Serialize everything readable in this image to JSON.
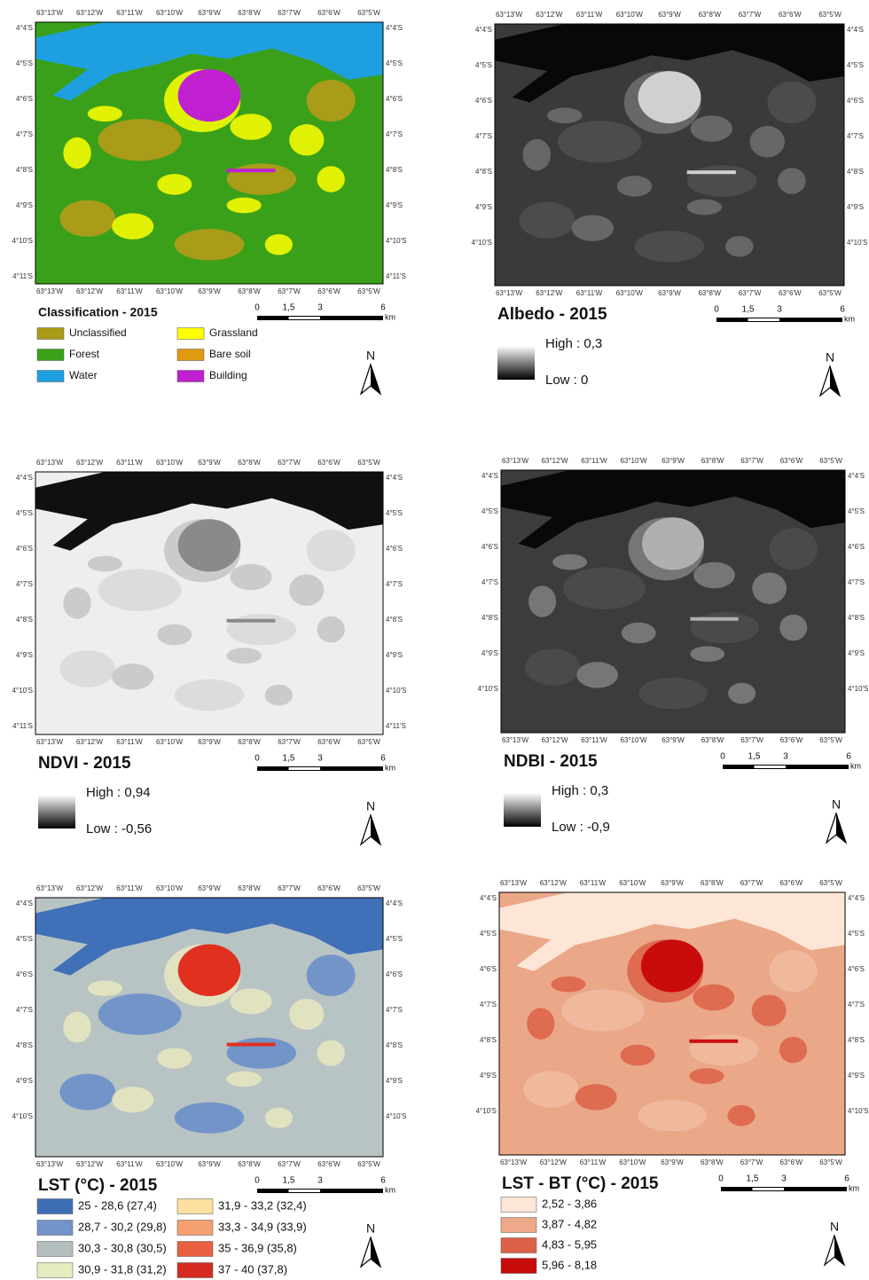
{
  "x_labels": [
    "63°13'W",
    "63°12'W",
    "63°11'W",
    "63°10'W",
    "63°9'W",
    "63°8'W",
    "63°7'W",
    "63°6'W",
    "63°5'W"
  ],
  "scale_bar": {
    "labels": [
      "0",
      "1,5",
      "3",
      "6"
    ],
    "unit": "km"
  },
  "north": "N",
  "panels": [
    {
      "title": "Classification - 2015",
      "y_labels": [
        "4°4'S",
        "4°5'S",
        "4°6'S",
        "4°7'S",
        "4°8'S",
        "4°9'S",
        "4°10'S",
        "4°11'S"
      ],
      "legend": {
        "items": [
          {
            "label": "Unclassified",
            "color": "#a89c18"
          },
          {
            "label": "Forest",
            "color": "#3aa01a"
          },
          {
            "label": "Water",
            "color": "#1ea0e0"
          },
          {
            "label": "Grassland",
            "color": "#ffff00"
          },
          {
            "label": "Bare soil",
            "color": "#e09a10"
          },
          {
            "label": "Building",
            "color": "#c020d0"
          }
        ]
      }
    },
    {
      "title": "Albedo - 2015",
      "y_labels": [
        "4°4'S",
        "4°5'S",
        "4°6'S",
        "4°7'S",
        "4°8'S",
        "4°9'S",
        "4°10'S"
      ],
      "legend": {
        "high": "High : 0,3",
        "low": "Low : 0"
      }
    },
    {
      "title": "NDVI - 2015",
      "y_labels": [
        "4°4'S",
        "4°5'S",
        "4°6'S",
        "4°7'S",
        "4°8'S",
        "4°9'S",
        "4°10'S",
        "4°11'S"
      ],
      "legend": {
        "high": "High : 0,94",
        "low": "Low : -0,56"
      }
    },
    {
      "title": "NDBI - 2015",
      "y_labels": [
        "4°4'S",
        "4°5'S",
        "4°6'S",
        "4°7'S",
        "4°8'S",
        "4°9'S",
        "4°10'S"
      ],
      "legend": {
        "high": "High : 0,3",
        "low": "Low : -0,9"
      }
    },
    {
      "title": "LST (°C) - 2015",
      "y_labels": [
        "4°4'S",
        "4°5'S",
        "4°6'S",
        "4°7'S",
        "4°8'S",
        "4°9'S",
        "4°10'S"
      ],
      "legend": {
        "items": [
          {
            "label": "25 - 28,6 (27,4)",
            "color": "#3e6fb5"
          },
          {
            "label": "28,7 - 30,2 (29,8)",
            "color": "#7394c8"
          },
          {
            "label": "30,3 - 30,8 (30,5)",
            "color": "#b4bebe"
          },
          {
            "label": "30,9 - 31,8 (31,2)",
            "color": "#e4ecc0"
          },
          {
            "label": "31,9 - 33,2 (32,4)",
            "color": "#fde0a0"
          },
          {
            "label": "33,3 - 34,9 (33,9)",
            "color": "#f5a070"
          },
          {
            "label": "35 - 36,9 (35,8)",
            "color": "#e86040"
          },
          {
            "label": "37 - 40 (37,8)",
            "color": "#d42a20"
          }
        ]
      }
    },
    {
      "title": "LST - BT (°C) - 2015",
      "y_labels": [
        "4°4'S",
        "4°5'S",
        "4°6'S",
        "4°7'S",
        "4°8'S",
        "4°9'S",
        "4°10'S"
      ],
      "legend": {
        "items": [
          {
            "label": "2,52 - 3,86",
            "color": "#fde6d8"
          },
          {
            "label": "3,87 - 4,82",
            "color": "#eea88a"
          },
          {
            "label": "4,83 - 5,95",
            "color": "#dd6048"
          },
          {
            "label": "5,96 - 8,18",
            "color": "#c80c0c"
          }
        ]
      }
    }
  ]
}
